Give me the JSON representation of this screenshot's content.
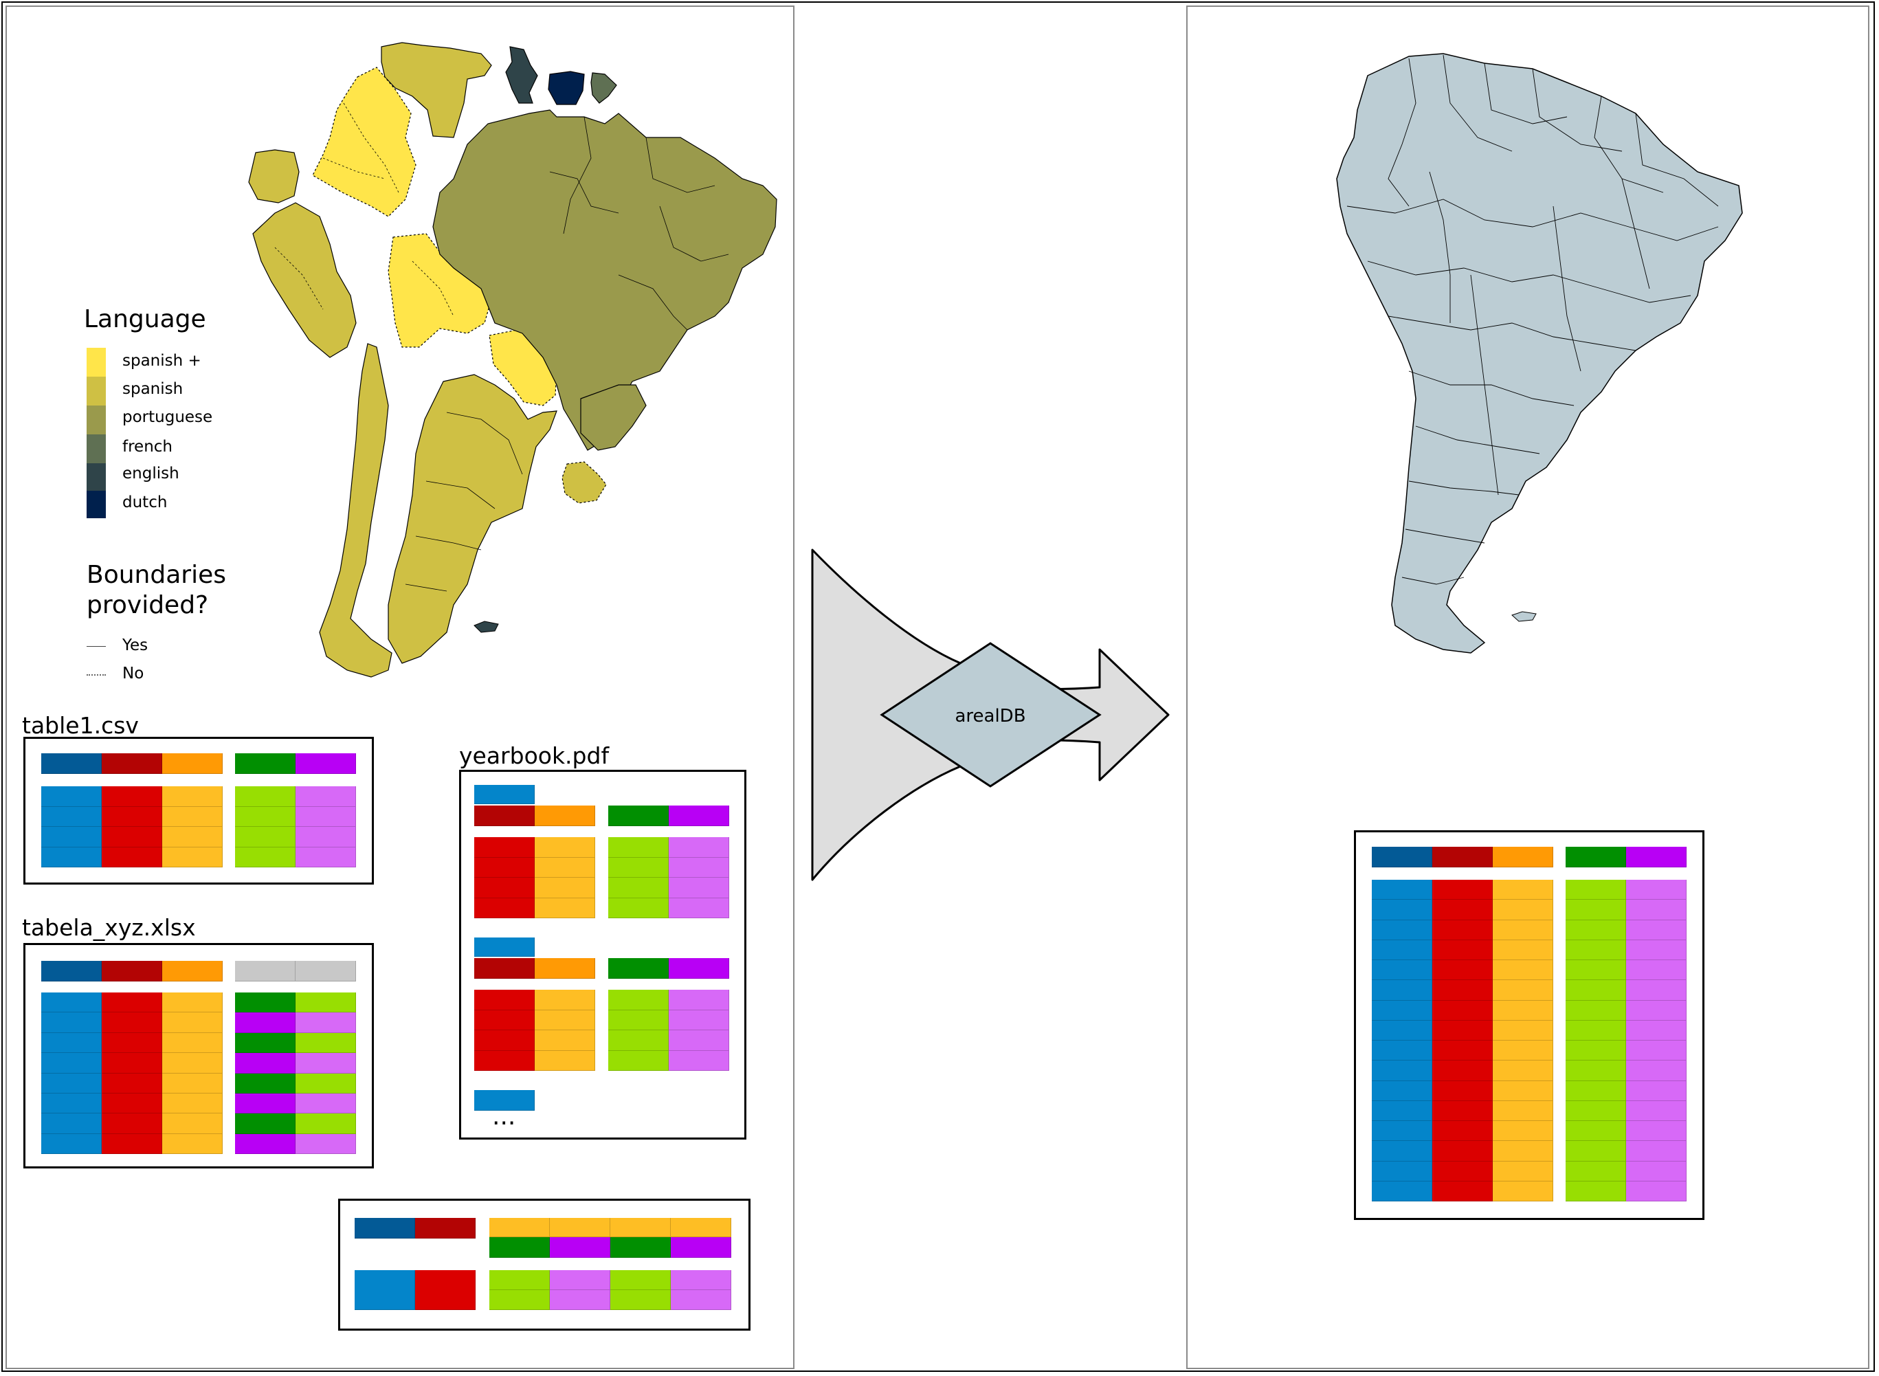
{
  "legend": {
    "language_title": "Language",
    "languages": [
      {
        "label": "spanish +",
        "color": "#FFE54A"
      },
      {
        "label": "spanish",
        "color": "#CFC044"
      },
      {
        "label": "portuguese",
        "color": "#9A9A4C"
      },
      {
        "label": "french",
        "color": "#5F7053"
      },
      {
        "label": "english",
        "color": "#2F4449"
      },
      {
        "label": "dutch",
        "color": "#00204D"
      }
    ],
    "boundaries_title_line1": "Boundaries",
    "boundaries_title_line2": "provided?",
    "boundaries": [
      {
        "label": "Yes",
        "style": "solid"
      },
      {
        "label": "No",
        "style": "dotted"
      }
    ]
  },
  "files": {
    "table1": "table1.csv",
    "tabela": "tabela_xyz.xlsx",
    "yearbook": "yearbook.pdf",
    "yearbook_more": "..."
  },
  "process": {
    "label": "arealDB"
  },
  "colors": {
    "dark_blue": "#035A96",
    "blue": "#0485CA",
    "dark_red": "#B30404",
    "red": "#DB0000",
    "orange": "#FF9A05",
    "yellow": "#FEBE24",
    "dark_green": "#018F01",
    "light_green": "#98DE02",
    "purple": "#B800F5",
    "light_purple": "#D769F7",
    "grey": "#C8C8C8",
    "map_blue": "#BCCDD4"
  }
}
